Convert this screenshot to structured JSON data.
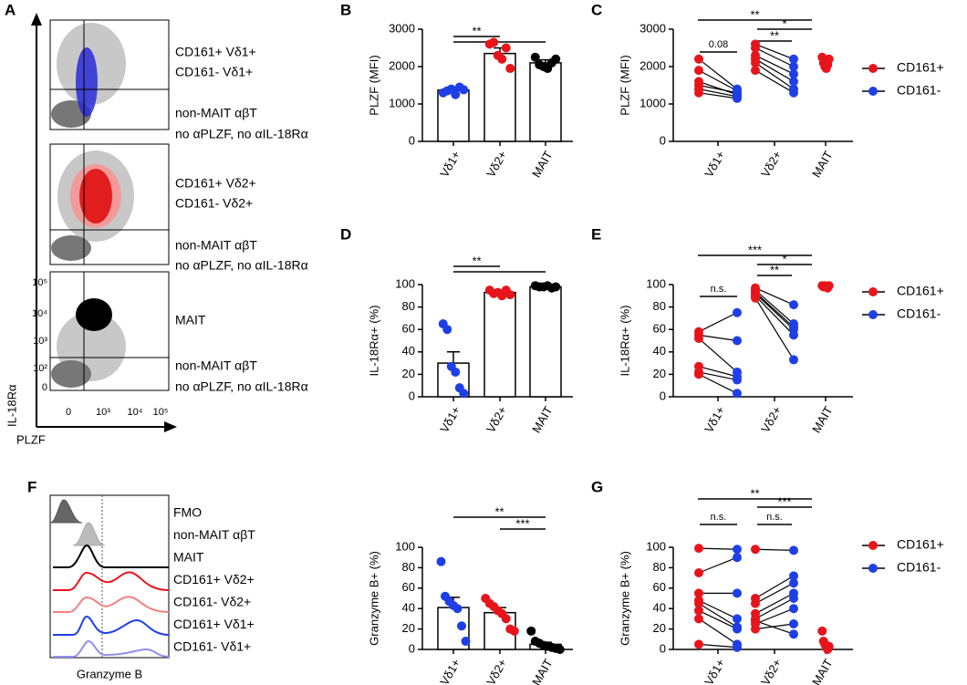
{
  "panel_labels": [
    "A",
    "B",
    "C",
    "D",
    "E",
    "F",
    "G"
  ],
  "panel_a": {
    "y_label": "IL-18Rα",
    "x_label": "PLZF",
    "x_tick_labels": [
      "0",
      "10³",
      "10⁴",
      "10⁵"
    ],
    "y_tick_labels": [
      "10⁵",
      "10⁴",
      "10³",
      "10²",
      "0"
    ],
    "boxes": [
      [
        "CD161+ Vδ1+",
        "CD161- Vδ1+",
        "non-MAIT αβT",
        "no αPLZF, no αIL-18Rα"
      ],
      [
        "CD161+ Vδ2+",
        "CD161- Vδ2+",
        "non-MAIT αβT",
        "no αPLZF, no αIL-18Rα"
      ],
      [
        "MAIT",
        "non-MAIT αβT",
        "no αPLZF, no αIL-18Rα"
      ]
    ]
  },
  "panel_f_histogram": {
    "x_label": "Granzyme B",
    "rows": [
      "FMO",
      "non-MAIT αβT",
      "MAIT",
      "CD161+ Vδ2+",
      "CD161- Vδ2+",
      "CD161+ Vδ1+",
      "CD161- Vδ1+"
    ]
  },
  "chart_data": [
    {
      "type": "bar",
      "ylabel": "PLZF (MFI)",
      "categories": [
        "Vδ1+",
        "Vδ2+",
        "MAIT"
      ],
      "values": [
        1370,
        2350,
        2100
      ],
      "errors": [
        60,
        150,
        80
      ],
      "colors": [
        "#1f3fe6",
        "#e8141b",
        "#000000"
      ],
      "points": [
        [
          1300,
          1350,
          1400,
          1250,
          1450,
          1380
        ],
        [
          2600,
          2650,
          2300,
          2200,
          2500,
          1950
        ],
        [
          2250,
          2050,
          2000,
          1950,
          2100,
          2200
        ]
      ],
      "ylim": [
        0,
        3000
      ],
      "yticks": [
        0,
        1000,
        2000,
        3000
      ],
      "annotations": [
        "**"
      ]
    },
    {
      "type": "paired",
      "ylabel": "PLZF (MFI)",
      "categories": [
        "Vδ1+",
        "Vδ2+",
        "MAIT"
      ],
      "series": [
        {
          "name": "CD161+",
          "color": "#e8141b",
          "values": [
            [
              2200,
              1900,
              1600,
              1500,
              1400,
              1300
            ],
            [
              2600,
              2500,
              2300,
              2200,
              2100,
              1900
            ],
            [
              2250,
              2100,
              2000,
              1950,
              2050,
              2200
            ]
          ]
        },
        {
          "name": "CD161-",
          "color": "#1f3fe6",
          "values": [
            [
              1400,
              1350,
              1250,
              1300,
              1200,
              1150
            ],
            [
              2200,
              2000,
              1800,
              1600,
              1400,
              1300
            ],
            null
          ]
        }
      ],
      "ylim": [
        0,
        3000
      ],
      "yticks": [
        0,
        1000,
        2000,
        3000
      ],
      "annotations": [
        "**",
        "*",
        "**",
        "0.08"
      ]
    },
    {
      "type": "bar",
      "ylabel": "IL-18Rα+ (%)",
      "categories": [
        "Vδ1+",
        "Vδ2+",
        "MAIT"
      ],
      "values": [
        30,
        93,
        98
      ],
      "errors": [
        10,
        2,
        1
      ],
      "colors": [
        "#1f3fe6",
        "#e8141b",
        "#000000"
      ],
      "points": [
        [
          65,
          60,
          27,
          22,
          8,
          3
        ],
        [
          95,
          92,
          93,
          90,
          95,
          91
        ],
        [
          99,
          98,
          98,
          99,
          97,
          98
        ]
      ],
      "ylim": [
        0,
        100
      ],
      "yticks": [
        0,
        20,
        40,
        60,
        80,
        100
      ],
      "annotations": [
        "**"
      ]
    },
    {
      "type": "paired",
      "ylabel": "IL-18Rα+ (%)",
      "categories": [
        "Vδ1+",
        "Vδ2+",
        "MAIT"
      ],
      "series": [
        {
          "name": "CD161+",
          "color": "#e8141b",
          "values": [
            [
              58,
              55,
              52,
              27,
              22,
              20
            ],
            [
              97,
              95,
              93,
              92,
              90,
              88
            ],
            [
              99,
              98,
              99,
              98,
              97,
              99
            ]
          ]
        },
        {
          "name": "CD161-",
          "color": "#1f3fe6",
          "values": [
            [
              75,
              50,
              22,
              18,
              15,
              3
            ],
            [
              82,
              65,
              62,
              60,
              55,
              33
            ],
            null
          ]
        }
      ],
      "ylim": [
        0,
        100
      ],
      "yticks": [
        0,
        20,
        40,
        60,
        80,
        100
      ],
      "annotations": [
        "***",
        "*",
        "**",
        "n.s."
      ]
    },
    {
      "type": "bar",
      "ylabel": "Granzyme B+ (%)",
      "categories": [
        "Vδ1+",
        "Vδ2+",
        "MAIT"
      ],
      "values": [
        41,
        36,
        5
      ],
      "errors": [
        10,
        5,
        2
      ],
      "colors": [
        "#1f3fe6",
        "#e8141b",
        "#000000"
      ],
      "points": [
        [
          86,
          52,
          47,
          43,
          40,
          23,
          8
        ],
        [
          50,
          45,
          42,
          38,
          35,
          30,
          20,
          18
        ],
        [
          18,
          8,
          6,
          4,
          3,
          2,
          1,
          0
        ]
      ],
      "ylim": [
        0,
        100
      ],
      "yticks": [
        0,
        20,
        40,
        60,
        80,
        100
      ],
      "annotations": [
        "**",
        "***"
      ]
    },
    {
      "type": "paired",
      "ylabel": "Granzyme B+ (%)",
      "categories": [
        "Vδ1+",
        "Vδ2+",
        "MAIT"
      ],
      "series": [
        {
          "name": "CD161+",
          "color": "#e8141b",
          "values": [
            [
              99,
              75,
              55,
              48,
              45,
              38,
              30,
              5
            ],
            [
              98,
              50,
              45,
              35,
              30,
              25,
              20,
              28
            ],
            [
              18,
              8,
              5,
              2,
              0,
              3
            ]
          ]
        },
        {
          "name": "CD161-",
          "color": "#1f3fe6",
          "values": [
            [
              98,
              90,
              55,
              30,
              22,
              20,
              5,
              2
            ],
            [
              97,
              72,
              65,
              55,
              50,
              40,
              25,
              15
            ],
            null
          ]
        }
      ],
      "ylim": [
        0,
        100
      ],
      "yticks": [
        0,
        20,
        40,
        60,
        80,
        100
      ],
      "annotations": [
        "**",
        "***",
        "n.s.",
        "n.s."
      ]
    }
  ]
}
